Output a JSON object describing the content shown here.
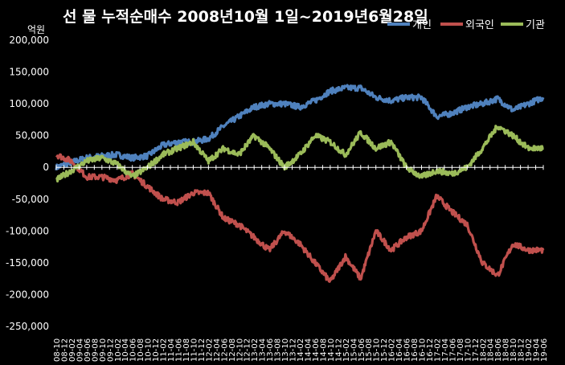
{
  "chart_data": {
    "type": "line",
    "title": "선 물 누적순매수 2008년10월 1일~2019년6월28일",
    "ylabel": "억원",
    "ylim": [
      -250000,
      200000
    ],
    "yticks": [
      "200,000",
      "150,000",
      "100,000",
      "50,000",
      "0",
      "-50,000",
      "-100,000",
      "-150,000",
      "-200,000",
      "-250,000"
    ],
    "grid": false,
    "legend": "top-right",
    "background": "#000000",
    "categories": [
      "08-10",
      "09-02",
      "09-06",
      "09-10",
      "10-02",
      "10-06",
      "10-10",
      "11-02",
      "11-06",
      "11-10",
      "12-02",
      "12-06",
      "12-10",
      "13-02",
      "13-06",
      "13-10",
      "14-02",
      "14-06",
      "14-10",
      "15-02",
      "15-06",
      "15-10",
      "16-02",
      "16-06",
      "16-10",
      "17-02",
      "17-06",
      "17-10",
      "18-02",
      "18-06",
      "18-10",
      "19-02",
      "19-06"
    ],
    "xtick_labels": [
      "08-10",
      "08-12",
      "09-02",
      "09-04",
      "09-06",
      "09-08",
      "09-10",
      "09-12",
      "10-02",
      "10-04",
      "10-06",
      "10-08",
      "10-10",
      "10-12",
      "11-02",
      "11-04",
      "11-06",
      "11-08",
      "11-10",
      "11-12",
      "12-02",
      "12-04",
      "12-06",
      "12-08",
      "12-10",
      "12-12",
      "13-02",
      "13-04",
      "13-06",
      "13-08",
      "13-10",
      "13-12",
      "14-02",
      "14-04",
      "14-06",
      "14-08",
      "14-10",
      "14-12",
      "15-02",
      "15-04",
      "15-06",
      "15-08",
      "15-10",
      "15-12",
      "16-02",
      "16-04",
      "16-06",
      "16-08",
      "16-10",
      "16-12",
      "17-02",
      "17-04",
      "17-06",
      "17-08",
      "17-10",
      "17-12",
      "18-02",
      "18-04",
      "18-06",
      "18-08",
      "18-10",
      "18-12",
      "19-02",
      "19-04",
      "19-06"
    ],
    "series": [
      {
        "name": "개인",
        "color": "#4f81bd",
        "values": [
          0,
          8000,
          15000,
          18000,
          20000,
          15000,
          18000,
          35000,
          40000,
          40000,
          45000,
          65000,
          80000,
          95000,
          100000,
          100000,
          95000,
          105000,
          120000,
          125000,
          125000,
          110000,
          105000,
          110000,
          110000,
          80000,
          85000,
          95000,
          100000,
          108000,
          90000,
          100000,
          110000
        ]
      },
      {
        "name": "외국인",
        "color": "#c0504d",
        "values": [
          20000,
          10000,
          -15000,
          -15000,
          -20000,
          -10000,
          -30000,
          -50000,
          -55000,
          -40000,
          -40000,
          -80000,
          -90000,
          -110000,
          -130000,
          -100000,
          -120000,
          -150000,
          -180000,
          -140000,
          -175000,
          -100000,
          -130000,
          -110000,
          -100000,
          -45000,
          -70000,
          -90000,
          -150000,
          -170000,
          -120000,
          -130000,
          -130000
        ]
      },
      {
        "name": "기관",
        "color": "#9bbb59",
        "values": [
          -20000,
          -5000,
          10000,
          15000,
          5000,
          -15000,
          0,
          20000,
          30000,
          40000,
          10000,
          30000,
          20000,
          50000,
          30000,
          0,
          20000,
          50000,
          40000,
          20000,
          55000,
          30000,
          40000,
          0,
          -15000,
          -5000,
          -10000,
          0,
          30000,
          65000,
          50000,
          30000,
          30000
        ]
      }
    ]
  }
}
